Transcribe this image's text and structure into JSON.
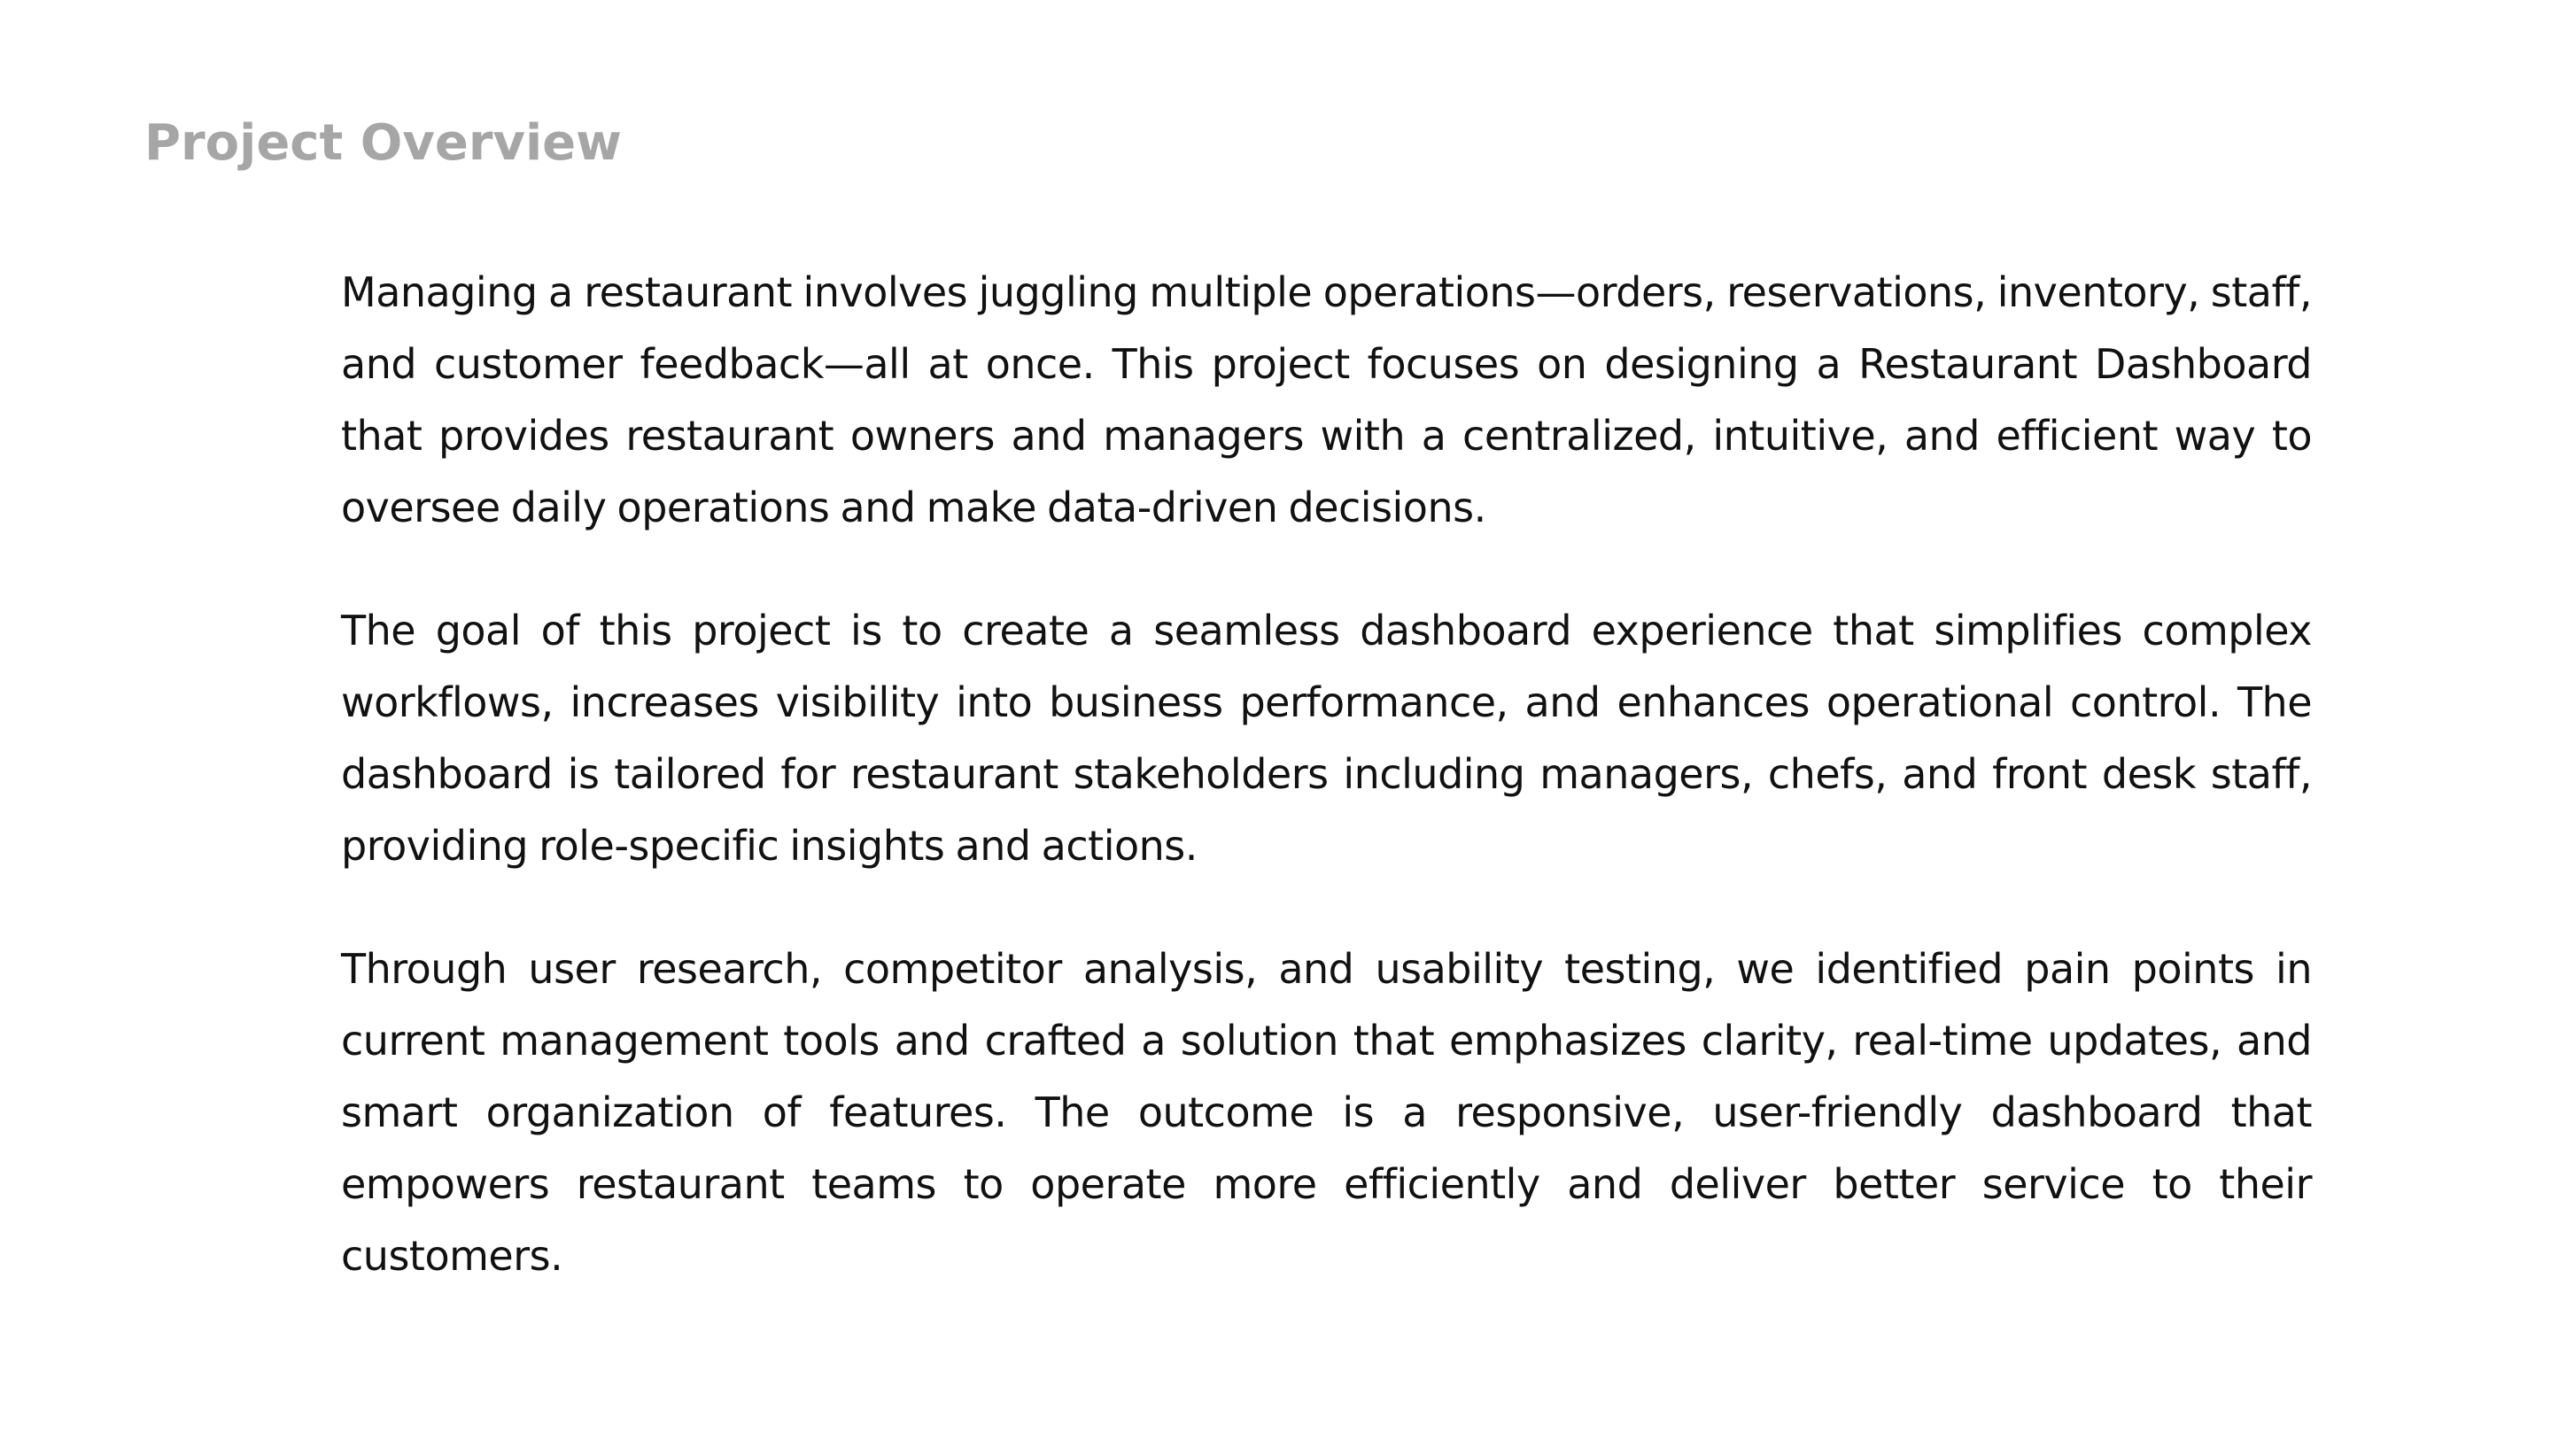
{
  "section": {
    "title": "Project Overview"
  },
  "paragraphs": [
    "Managing a restaurant involves juggling multiple operations—orders, reservations, inventory, staff, and customer feedback—all at once. This project focuses on designing a Restaurant Dashboard that provides restaurant owners and managers with a centralized, intuitive, and efficient way to oversee daily operations and make data-driven decisions.",
    "The goal of this project is to create a seamless dashboard experience that simplifies complex workflows, increases visibility into business performance, and enhances operational control. The dashboard is tailored for restaurant stakeholders including managers, chefs, and front desk staff, providing role-specific insights and actions.",
    "Through user research, competitor analysis, and usability testing, we identified pain points in current management tools and crafted a solution that emphasizes clarity, real-time updates, and smart organization of features. The outcome is a responsive, user-friendly dashboard that empowers restaurant teams to operate more efficiently and deliver better service to their customers."
  ],
  "colors": {
    "title": "#a6a6a6",
    "text": "#111111",
    "background": "#ffffff"
  }
}
